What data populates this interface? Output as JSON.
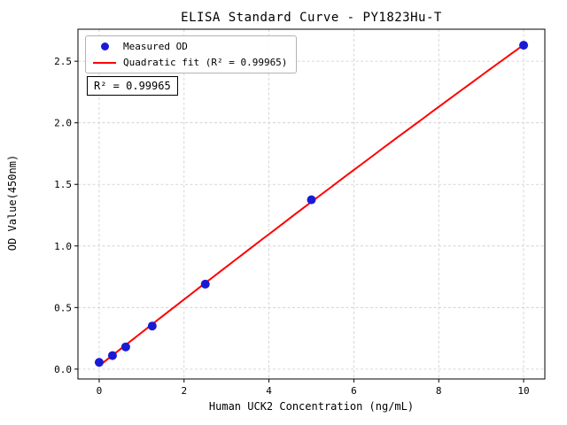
{
  "chart_data": {
    "type": "scatter",
    "title": "ELISA Standard Curve - PY1823Hu-T",
    "xlabel": "Human UCK2 Concentration (ng/mL)",
    "ylabel": "OD Value(450nm)",
    "xlim": [
      -0.5,
      10.5
    ],
    "ylim": [
      -0.08,
      2.76
    ],
    "x_ticks": [
      0,
      2,
      4,
      6,
      8,
      10
    ],
    "x_tick_labels": [
      "0",
      "2",
      "4",
      "6",
      "8",
      "10"
    ],
    "y_ticks": [
      0,
      0.5,
      1.0,
      1.5,
      2.0,
      2.5
    ],
    "y_tick_labels": [
      "0.0",
      "0.5",
      "1.0",
      "1.5",
      "2.0",
      "2.5"
    ],
    "grid": true,
    "grid_color": "#cccccc",
    "legend_position": "upper left",
    "annotation": "R² = 0.99965",
    "r_squared": 0.99965,
    "series": [
      {
        "name": "Measured OD",
        "type": "scatter",
        "color": "#1a1ad6",
        "x": [
          0,
          0.313,
          0.625,
          1.25,
          2.5,
          5,
          10
        ],
        "y": [
          0.055,
          0.11,
          0.18,
          0.35,
          0.69,
          1.375,
          2.63
        ]
      },
      {
        "name": "Quadratic fit (R² = 0.99965)",
        "type": "line",
        "fit": "quadratic",
        "color": "#ff0000"
      }
    ]
  }
}
